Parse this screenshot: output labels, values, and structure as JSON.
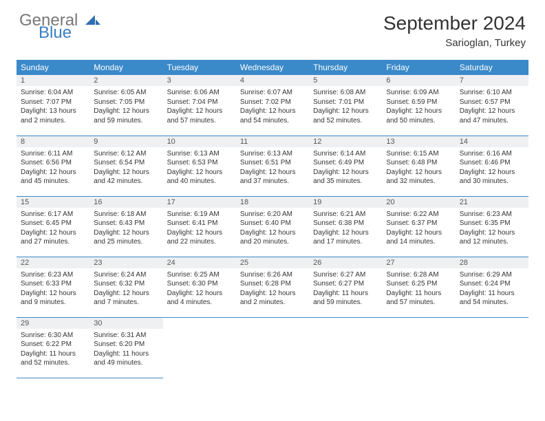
{
  "brand": {
    "part1": "General",
    "part2": "Blue"
  },
  "title": "September 2024",
  "location": "Sarioglan, Turkey",
  "colors": {
    "header_bg": "#3a89c9",
    "header_fg": "#ffffff",
    "daynum_bg": "#eef0f2",
    "row_border": "#3a89c9",
    "logo_accent": "#3a7fc4"
  },
  "weekdays": [
    "Sunday",
    "Monday",
    "Tuesday",
    "Wednesday",
    "Thursday",
    "Friday",
    "Saturday"
  ],
  "weeks": [
    [
      {
        "n": 1,
        "sr": "6:04 AM",
        "ss": "7:07 PM",
        "dl": "13 hours and 2 minutes."
      },
      {
        "n": 2,
        "sr": "6:05 AM",
        "ss": "7:05 PM",
        "dl": "12 hours and 59 minutes."
      },
      {
        "n": 3,
        "sr": "6:06 AM",
        "ss": "7:04 PM",
        "dl": "12 hours and 57 minutes."
      },
      {
        "n": 4,
        "sr": "6:07 AM",
        "ss": "7:02 PM",
        "dl": "12 hours and 54 minutes."
      },
      {
        "n": 5,
        "sr": "6:08 AM",
        "ss": "7:01 PM",
        "dl": "12 hours and 52 minutes."
      },
      {
        "n": 6,
        "sr": "6:09 AM",
        "ss": "6:59 PM",
        "dl": "12 hours and 50 minutes."
      },
      {
        "n": 7,
        "sr": "6:10 AM",
        "ss": "6:57 PM",
        "dl": "12 hours and 47 minutes."
      }
    ],
    [
      {
        "n": 8,
        "sr": "6:11 AM",
        "ss": "6:56 PM",
        "dl": "12 hours and 45 minutes."
      },
      {
        "n": 9,
        "sr": "6:12 AM",
        "ss": "6:54 PM",
        "dl": "12 hours and 42 minutes."
      },
      {
        "n": 10,
        "sr": "6:13 AM",
        "ss": "6:53 PM",
        "dl": "12 hours and 40 minutes."
      },
      {
        "n": 11,
        "sr": "6:13 AM",
        "ss": "6:51 PM",
        "dl": "12 hours and 37 minutes."
      },
      {
        "n": 12,
        "sr": "6:14 AM",
        "ss": "6:49 PM",
        "dl": "12 hours and 35 minutes."
      },
      {
        "n": 13,
        "sr": "6:15 AM",
        "ss": "6:48 PM",
        "dl": "12 hours and 32 minutes."
      },
      {
        "n": 14,
        "sr": "6:16 AM",
        "ss": "6:46 PM",
        "dl": "12 hours and 30 minutes."
      }
    ],
    [
      {
        "n": 15,
        "sr": "6:17 AM",
        "ss": "6:45 PM",
        "dl": "12 hours and 27 minutes."
      },
      {
        "n": 16,
        "sr": "6:18 AM",
        "ss": "6:43 PM",
        "dl": "12 hours and 25 minutes."
      },
      {
        "n": 17,
        "sr": "6:19 AM",
        "ss": "6:41 PM",
        "dl": "12 hours and 22 minutes."
      },
      {
        "n": 18,
        "sr": "6:20 AM",
        "ss": "6:40 PM",
        "dl": "12 hours and 20 minutes."
      },
      {
        "n": 19,
        "sr": "6:21 AM",
        "ss": "6:38 PM",
        "dl": "12 hours and 17 minutes."
      },
      {
        "n": 20,
        "sr": "6:22 AM",
        "ss": "6:37 PM",
        "dl": "12 hours and 14 minutes."
      },
      {
        "n": 21,
        "sr": "6:23 AM",
        "ss": "6:35 PM",
        "dl": "12 hours and 12 minutes."
      }
    ],
    [
      {
        "n": 22,
        "sr": "6:23 AM",
        "ss": "6:33 PM",
        "dl": "12 hours and 9 minutes."
      },
      {
        "n": 23,
        "sr": "6:24 AM",
        "ss": "6:32 PM",
        "dl": "12 hours and 7 minutes."
      },
      {
        "n": 24,
        "sr": "6:25 AM",
        "ss": "6:30 PM",
        "dl": "12 hours and 4 minutes."
      },
      {
        "n": 25,
        "sr": "6:26 AM",
        "ss": "6:28 PM",
        "dl": "12 hours and 2 minutes."
      },
      {
        "n": 26,
        "sr": "6:27 AM",
        "ss": "6:27 PM",
        "dl": "11 hours and 59 minutes."
      },
      {
        "n": 27,
        "sr": "6:28 AM",
        "ss": "6:25 PM",
        "dl": "11 hours and 57 minutes."
      },
      {
        "n": 28,
        "sr": "6:29 AM",
        "ss": "6:24 PM",
        "dl": "11 hours and 54 minutes."
      }
    ],
    [
      {
        "n": 29,
        "sr": "6:30 AM",
        "ss": "6:22 PM",
        "dl": "11 hours and 52 minutes."
      },
      {
        "n": 30,
        "sr": "6:31 AM",
        "ss": "6:20 PM",
        "dl": "11 hours and 49 minutes."
      },
      null,
      null,
      null,
      null,
      null
    ]
  ],
  "labels": {
    "sunrise": "Sunrise:",
    "sunset": "Sunset:",
    "daylight": "Daylight:"
  }
}
